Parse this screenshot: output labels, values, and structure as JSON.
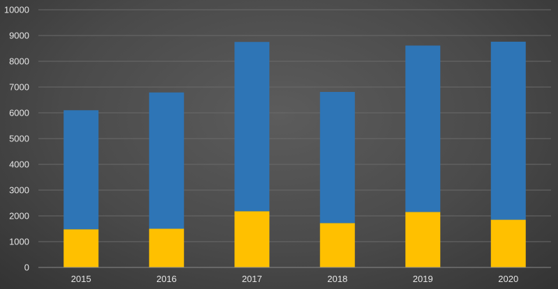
{
  "chart_data": {
    "type": "bar",
    "stacked": true,
    "categories": [
      "2015",
      "2016",
      "2017",
      "2018",
      "2019",
      "2020"
    ],
    "series": [
      {
        "color": "#FFC000",
        "values": [
          1480,
          1500,
          2180,
          1720,
          2150,
          1850
        ]
      },
      {
        "color": "#2E75B6",
        "values": [
          4620,
          5290,
          6570,
          5090,
          6460,
          6910
        ]
      }
    ],
    "totals": [
      6100,
      6790,
      8750,
      6810,
      8610,
      8760
    ],
    "ylim": [
      0,
      10000
    ],
    "yticks": [
      "0",
      "1000",
      "2000",
      "3000",
      "4000",
      "5000",
      "6000",
      "7000",
      "8000",
      "9000",
      "10000"
    ],
    "title": "",
    "xlabel": "",
    "ylabel": "",
    "grid": true,
    "legend": "none"
  }
}
